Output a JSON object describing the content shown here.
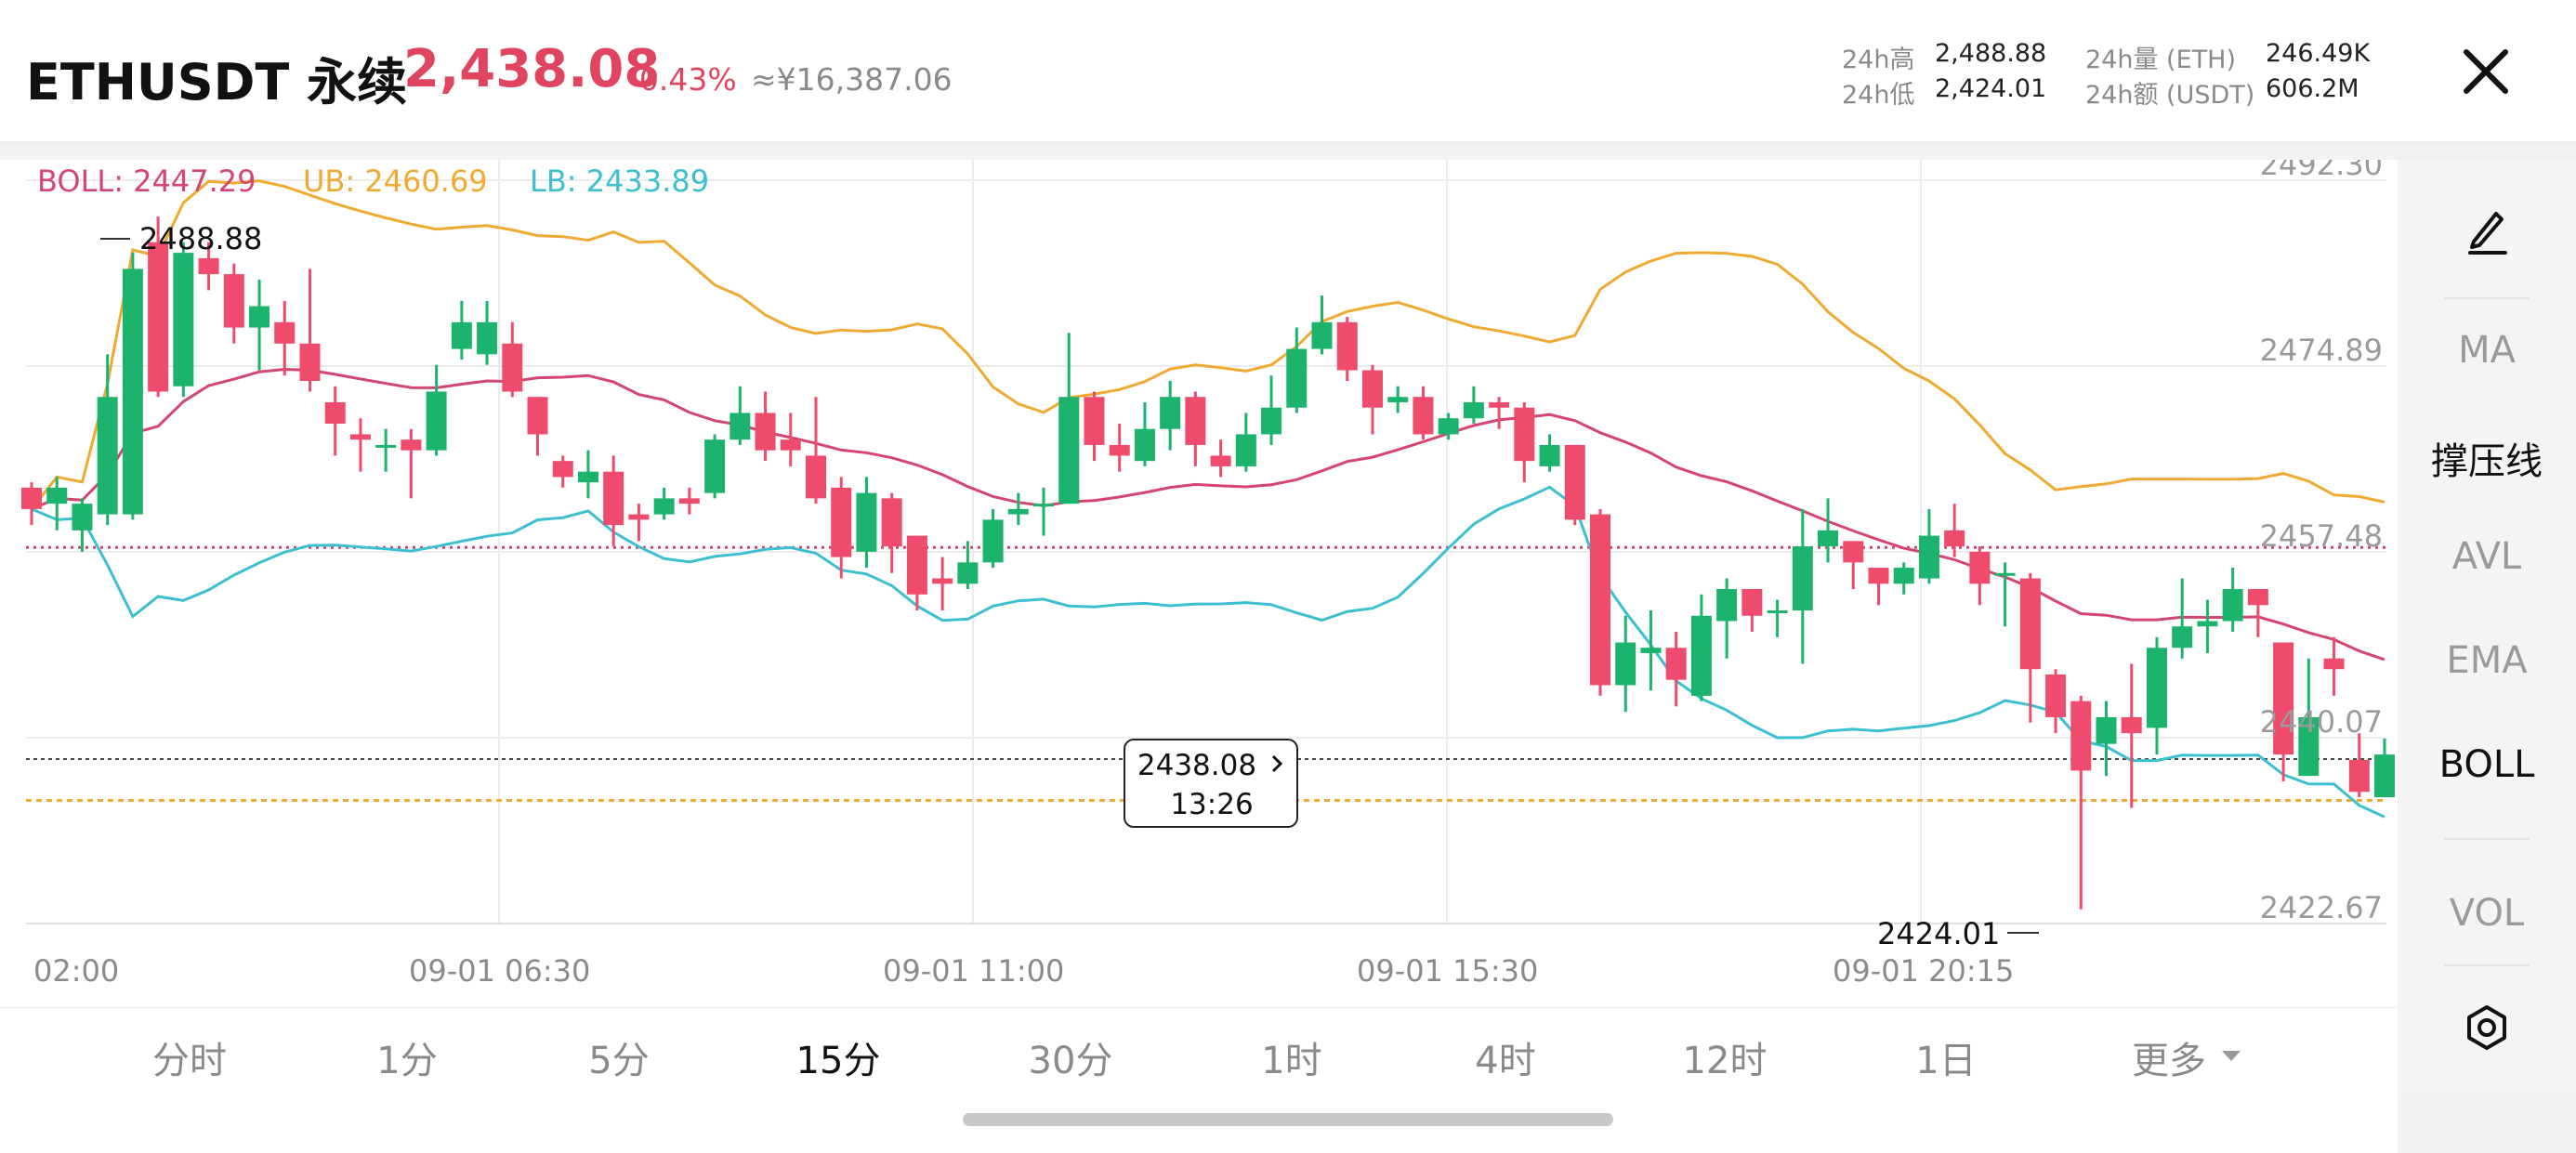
{
  "header": {
    "symbol": "ETHUSDT 永续",
    "last_price": "2,438.08",
    "change_pct": "-0.43%",
    "cny_price": "≈¥16,387.06",
    "stats": {
      "high_label": "24h高",
      "high_value": "2,488.88",
      "low_label": "24h低",
      "low_value": "2,424.01",
      "vol_label": "24h量 (ETH)",
      "vol_value": "246.49K",
      "amt_label": "24h额 (USDT)",
      "amt_value": "606.2M"
    }
  },
  "indicators": {
    "boll": "BOLL: 2447.29",
    "ub": "UB: 2460.69",
    "lb": "LB: 2433.89"
  },
  "sidebar": {
    "items": [
      "MA",
      "撑压线",
      "AVL",
      "EMA",
      "BOLL",
      "VOL"
    ],
    "active": "BOLL"
  },
  "tabs": {
    "items": [
      "分时",
      "1分",
      "5分",
      "15分",
      "30分",
      "1时",
      "4时",
      "12时",
      "1日",
      "更多"
    ],
    "active": "15分"
  },
  "colors": {
    "up": "#1cb36d",
    "down": "#ef4b6d",
    "boll_mid": "#d44670",
    "boll_ub": "#efaa32",
    "boll_lb": "#3cc0cf"
  },
  "chart_data": {
    "type": "candlestick",
    "y_ticks": [
      "2492.30",
      "2474.89",
      "2457.48",
      "2440.07",
      "2422.67"
    ],
    "ylim": [
      2422.67,
      2492.3
    ],
    "x_ticks": [
      "02:00",
      "09-01 06:30",
      "09-01 11:00",
      "09-01 15:30",
      "09-01 20:15"
    ],
    "high_marker": "2488.88",
    "low_marker": "2424.01",
    "current_price_box": {
      "price": "2438.08",
      "countdown": "13:26"
    },
    "levels": {
      "resistance": 2457.9,
      "current": 2438.08,
      "support": 2434.2
    },
    "candles": [
      [
        2463.5,
        2461.5,
        2464.0,
        2460.0
      ],
      [
        2462.0,
        2463.5,
        2464.5,
        2459.5
      ],
      [
        2459.5,
        2462.0,
        2462.5,
        2457.5
      ],
      [
        2461.0,
        2472.0,
        2476.0,
        2460.0
      ],
      [
        2461.0,
        2484.0,
        2485.5,
        2460.5
      ],
      [
        2486.5,
        2472.5,
        2488.9,
        2472.0
      ],
      [
        2473.0,
        2485.5,
        2486.5,
        2472.0
      ],
      [
        2485.0,
        2483.5,
        2486.5,
        2482.0
      ],
      [
        2483.5,
        2478.5,
        2484.5,
        2477.0
      ],
      [
        2478.5,
        2480.5,
        2483.0,
        2474.5
      ],
      [
        2479.0,
        2477.0,
        2481.0,
        2474.0
      ],
      [
        2477.0,
        2473.5,
        2484.0,
        2472.5
      ],
      [
        2471.5,
        2469.5,
        2473.0,
        2466.5
      ],
      [
        2468.5,
        2468.0,
        2470.0,
        2465.0
      ],
      [
        2467.5,
        2467.5,
        2469.0,
        2465.0
      ],
      [
        2468.0,
        2467.0,
        2469.0,
        2462.5
      ],
      [
        2467.0,
        2472.5,
        2475.0,
        2466.5
      ],
      [
        2476.5,
        2479.0,
        2481.0,
        2475.5
      ],
      [
        2476.0,
        2479.0,
        2481.0,
        2475.0
      ],
      [
        2477.0,
        2472.5,
        2479.0,
        2472.0
      ],
      [
        2472.0,
        2468.5,
        2472.0,
        2466.5
      ],
      [
        2466.0,
        2464.5,
        2466.5,
        2463.5
      ],
      [
        2464.0,
        2465.0,
        2467.0,
        2462.5
      ],
      [
        2465.0,
        2460.0,
        2466.5,
        2458.0
      ],
      [
        2461.0,
        2460.5,
        2462.0,
        2458.5
      ],
      [
        2461.0,
        2462.5,
        2463.5,
        2460.5
      ],
      [
        2462.5,
        2462.0,
        2463.5,
        2461.0
      ],
      [
        2463.0,
        2468.0,
        2468.5,
        2462.5
      ],
      [
        2468.0,
        2470.5,
        2473.0,
        2467.5
      ],
      [
        2470.5,
        2467.0,
        2472.5,
        2466.0
      ],
      [
        2468.0,
        2467.0,
        2470.5,
        2465.5
      ],
      [
        2466.5,
        2462.5,
        2472.0,
        2462.0
      ],
      [
        2463.5,
        2457.0,
        2464.5,
        2455.0
      ],
      [
        2457.5,
        2463.0,
        2464.5,
        2456.0
      ],
      [
        2462.5,
        2458.0,
        2463.0,
        2455.5
      ],
      [
        2459.0,
        2453.5,
        2459.0,
        2452.0
      ],
      [
        2455.0,
        2454.5,
        2457.0,
        2452.0
      ],
      [
        2454.5,
        2456.5,
        2458.5,
        2454.0
      ],
      [
        2456.5,
        2460.5,
        2461.5,
        2456.0
      ],
      [
        2461.0,
        2461.5,
        2463.0,
        2460.0
      ],
      [
        2462.0,
        2462.0,
        2463.5,
        2459.0
      ],
      [
        2462.0,
        2472.0,
        2478.0,
        2462.0
      ],
      [
        2472.0,
        2467.5,
        2472.5,
        2466.0
      ],
      [
        2467.5,
        2466.5,
        2469.5,
        2465.0
      ],
      [
        2466.0,
        2469.0,
        2471.5,
        2465.5
      ],
      [
        2469.0,
        2472.0,
        2473.5,
        2467.0
      ],
      [
        2472.0,
        2467.5,
        2472.5,
        2465.5
      ],
      [
        2466.5,
        2465.5,
        2468.0,
        2464.5
      ],
      [
        2465.5,
        2468.5,
        2470.5,
        2465.0
      ],
      [
        2468.5,
        2471.0,
        2474.0,
        2467.5
      ],
      [
        2471.0,
        2476.5,
        2478.5,
        2470.5
      ],
      [
        2476.5,
        2479.0,
        2481.5,
        2476.0
      ],
      [
        2479.0,
        2474.5,
        2479.5,
        2473.5
      ],
      [
        2474.5,
        2471.0,
        2475.0,
        2468.5
      ],
      [
        2471.5,
        2472.0,
        2473.0,
        2470.5
      ],
      [
        2472.0,
        2468.5,
        2473.0,
        2468.0
      ],
      [
        2468.5,
        2470.0,
        2470.5,
        2468.0
      ],
      [
        2470.0,
        2471.5,
        2473.0,
        2469.5
      ],
      [
        2471.5,
        2471.0,
        2472.0,
        2469.0
      ],
      [
        2471.0,
        2466.0,
        2471.5,
        2464.0
      ],
      [
        2465.5,
        2467.5,
        2468.5,
        2465.0
      ],
      [
        2467.5,
        2460.5,
        2467.5,
        2460.0
      ],
      [
        2461.0,
        2445.0,
        2461.5,
        2444.0
      ],
      [
        2445.0,
        2449.0,
        2451.5,
        2442.5
      ],
      [
        2448.0,
        2448.5,
        2452.0,
        2444.5
      ],
      [
        2448.5,
        2445.5,
        2450.0,
        2443.0
      ],
      [
        2444.0,
        2451.5,
        2453.5,
        2443.5
      ],
      [
        2451.0,
        2454.0,
        2455.0,
        2447.5
      ],
      [
        2454.0,
        2451.5,
        2454.0,
        2450.0
      ],
      [
        2452.0,
        2452.0,
        2453.0,
        2449.5
      ],
      [
        2452.0,
        2458.0,
        2461.5,
        2447.0
      ],
      [
        2458.0,
        2459.5,
        2462.5,
        2456.5
      ],
      [
        2458.5,
        2456.5,
        2458.5,
        2454.0
      ],
      [
        2456.0,
        2454.5,
        2456.0,
        2452.5
      ],
      [
        2454.5,
        2456.0,
        2456.5,
        2453.5
      ],
      [
        2455.0,
        2459.0,
        2461.5,
        2454.5
      ],
      [
        2459.5,
        2458.0,
        2462.0,
        2457.0
      ],
      [
        2457.5,
        2454.5,
        2458.0,
        2452.5
      ],
      [
        2455.5,
        2455.5,
        2456.5,
        2450.5
      ],
      [
        2455.0,
        2446.5,
        2455.5,
        2441.5
      ],
      [
        2446.0,
        2442.0,
        2446.5,
        2440.5
      ],
      [
        2443.5,
        2437.0,
        2444.0,
        2424.0
      ],
      [
        2439.5,
        2442.0,
        2443.5,
        2436.5
      ],
      [
        2442.0,
        2440.5,
        2447.0,
        2433.5
      ],
      [
        2441.0,
        2448.5,
        2449.5,
        2438.5
      ],
      [
        2448.5,
        2450.5,
        2455.0,
        2447.5
      ],
      [
        2450.5,
        2451.0,
        2453.0,
        2448.0
      ],
      [
        2451.0,
        2454.0,
        2456.0,
        2450.0
      ],
      [
        2454.0,
        2452.5,
        2454.0,
        2449.5
      ],
      [
        2449.0,
        2438.5,
        2449.0,
        2436.0
      ],
      [
        2436.5,
        2442.0,
        2447.5,
        2436.5
      ],
      [
        2447.5,
        2446.5,
        2449.5,
        2444.0
      ],
      [
        2438.0,
        2435.0,
        2440.5,
        2434.5
      ],
      [
        2434.5,
        2438.5,
        2440.0,
        2434.5
      ]
    ]
  }
}
